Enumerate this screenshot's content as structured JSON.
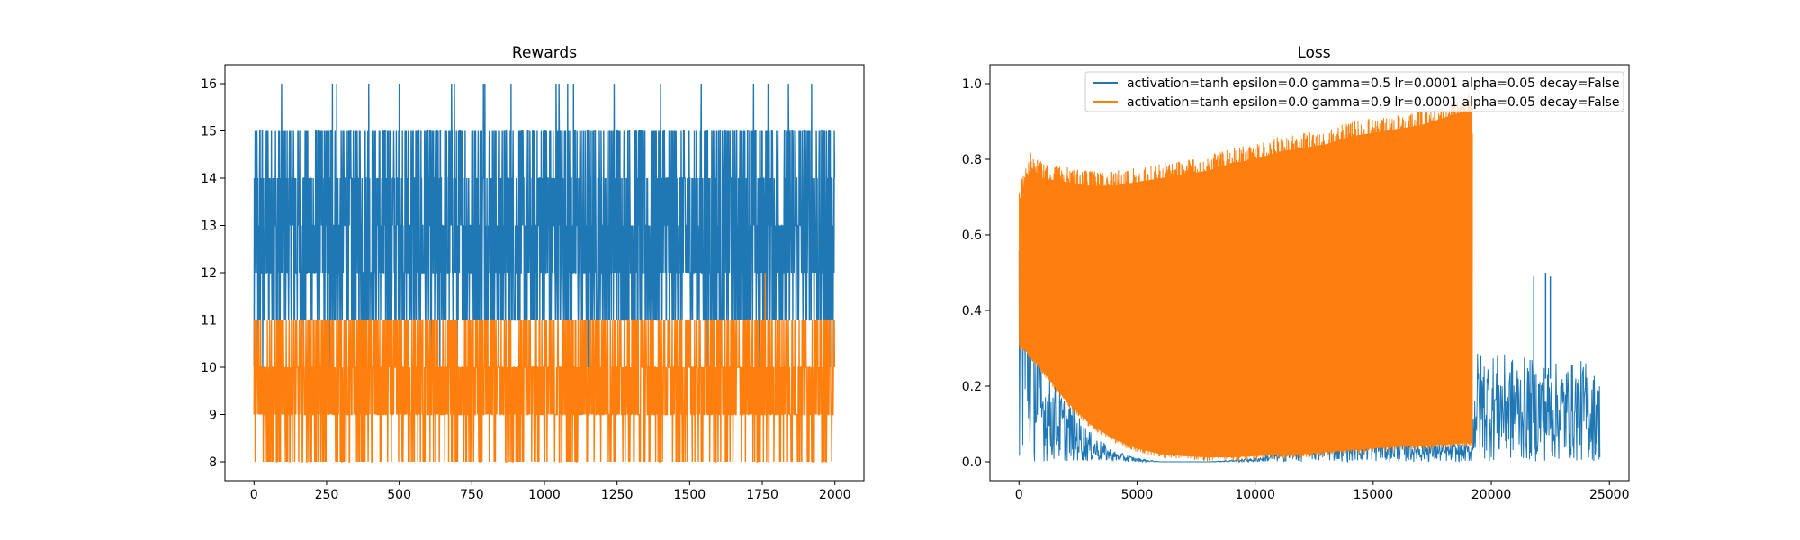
{
  "chart_data": [
    {
      "type": "line",
      "title": "Rewards",
      "xlabel": "",
      "ylabel": "",
      "xlim": [
        -100,
        2100
      ],
      "ylim": [
        7.6,
        16.4
      ],
      "xticks": [
        0,
        250,
        500,
        750,
        1000,
        1250,
        1500,
        1750,
        2000
      ],
      "yticks": [
        8,
        9,
        10,
        11,
        12,
        13,
        14,
        15,
        16
      ],
      "grid": false,
      "series": [
        {
          "color": "#1f77b4",
          "points": 2000,
          "band": [
            11,
            15
          ],
          "spike_value": 16,
          "spikes_x": [
            95,
            270,
            285,
            395,
            500,
            680,
            690,
            790,
            795,
            885,
            1040,
            1050,
            1080,
            1100,
            1240,
            1400,
            1540,
            1720,
            1770,
            1840,
            1920
          ],
          "low_value": 10,
          "lows_x": [
            0,
            15,
            30,
            80,
            170,
            260,
            340,
            420,
            610,
            640,
            700,
            820,
            880,
            940,
            1150,
            1320,
            1430,
            1560,
            1740,
            1950,
            1990
          ],
          "range": [
            10,
            16
          ]
        },
        {
          "color": "#ff7f0e",
          "points": 2000,
          "band": [
            9,
            11
          ],
          "spike_value": 12,
          "spikes_x": [
            1760
          ],
          "low_value": 8,
          "range": [
            8,
            12
          ]
        }
      ]
    },
    {
      "type": "line",
      "title": "Loss",
      "xlabel": "",
      "ylabel": "",
      "xlim": [
        -1230,
        25830
      ],
      "ylim": [
        -0.05,
        1.05
      ],
      "xticks": [
        0,
        5000,
        10000,
        15000,
        20000,
        25000
      ],
      "yticks": [
        0.0,
        0.2,
        0.4,
        0.6,
        0.8,
        1.0
      ],
      "grid": false,
      "legend_position": "top-right",
      "series": [
        {
          "name": "activation=tanh epsilon=0.0 gamma=0.5 lr=0.0001 alpha=0.05 decay=False",
          "color": "#1f77b4",
          "x_end": 24600,
          "envelope_x": [
            0,
            1000,
            2000,
            3000,
            4000,
            5000,
            6000,
            8000,
            10000,
            11000,
            12000,
            13000,
            14000,
            15000,
            16000,
            17000,
            18000,
            19200,
            19300,
            20000,
            21000,
            22000,
            23000,
            24000,
            24600
          ],
          "envelope_y": [
            0.72,
            0.26,
            0.17,
            0.08,
            0.03,
            0.01,
            0.0,
            0.0,
            0.01,
            0.03,
            0.06,
            0.09,
            0.08,
            0.08,
            0.07,
            0.06,
            0.05,
            0.05,
            0.3,
            0.29,
            0.28,
            0.27,
            0.26,
            0.27,
            0.22
          ],
          "spikes_x": [
            21800,
            22300,
            22500
          ],
          "spikes_y": [
            0.49,
            0.5,
            0.49
          ]
        },
        {
          "name": "activation=tanh epsilon=0.0 gamma=0.9 lr=0.0001 alpha=0.05 decay=False",
          "color": "#ff7f0e",
          "x_end": 19200,
          "upper_x": [
            0,
            500,
            1000,
            2000,
            3000,
            4000,
            5000,
            6000,
            7000,
            8000,
            9000,
            10000,
            11000,
            12000,
            13000,
            14000,
            15000,
            16000,
            17000,
            18000,
            19000,
            19200
          ],
          "upper_y": [
            0.73,
            0.82,
            0.79,
            0.78,
            0.77,
            0.77,
            0.78,
            0.79,
            0.8,
            0.81,
            0.83,
            0.84,
            0.86,
            0.87,
            0.88,
            0.9,
            0.91,
            0.92,
            0.93,
            0.95,
            0.97,
            0.99
          ],
          "lower_x": [
            0,
            500,
            1000,
            2000,
            3000,
            4000,
            5000,
            6000,
            7000,
            8000,
            9000,
            10000,
            12000,
            14000,
            16000,
            18000,
            19200
          ],
          "lower_y": [
            0.3,
            0.27,
            0.23,
            0.15,
            0.09,
            0.05,
            0.025,
            0.01,
            0.005,
            0.002,
            0.002,
            0.005,
            0.01,
            0.02,
            0.03,
            0.035,
            0.04
          ]
        }
      ]
    }
  ]
}
